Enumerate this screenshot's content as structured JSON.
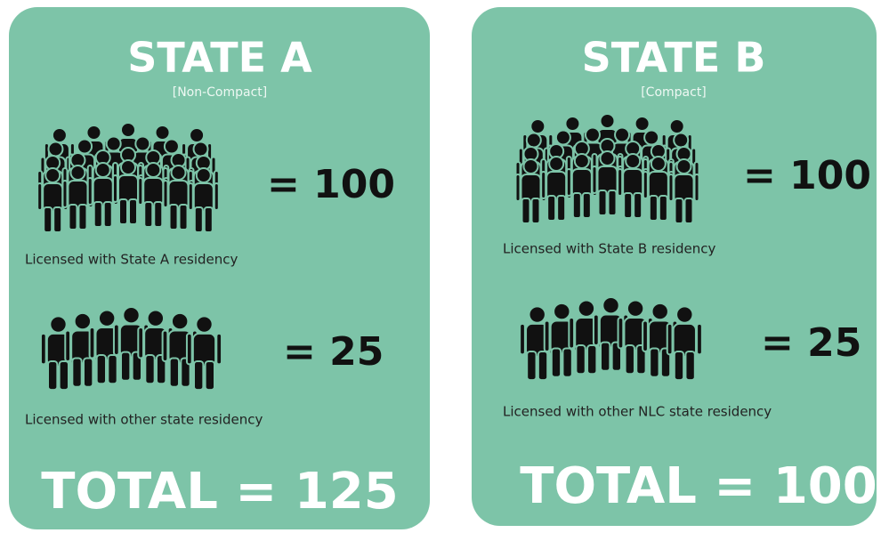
{
  "panels": [
    {
      "title": "STATE A",
      "subtitle": "[Non-Compact]",
      "groups": [
        {
          "equation": "= 100",
          "caption": "Licensed with State A residency"
        },
        {
          "equation": "= 25",
          "caption": "Licensed with other state residency"
        }
      ],
      "total": "TOTAL = 125"
    },
    {
      "title": "STATE B",
      "subtitle": "[Compact]",
      "groups": [
        {
          "equation": "= 100",
          "caption": "Licensed with State B residency"
        },
        {
          "equation": "= 25",
          "caption": "Licensed with other NLC state residency"
        }
      ],
      "total": "TOTAL = 100"
    }
  ]
}
